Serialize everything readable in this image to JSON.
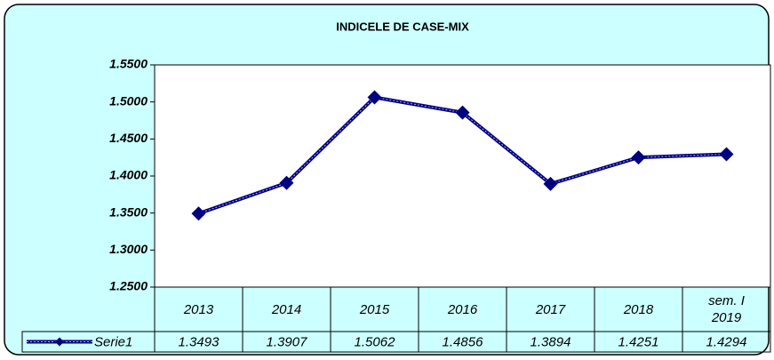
{
  "chart_data": {
    "type": "line",
    "title": "INDICELE DE CASE-MIX",
    "categories": [
      "2013",
      "2014",
      "2015",
      "2016",
      "2017",
      "2018",
      "sem. I 2019"
    ],
    "series": [
      {
        "name": "Serie1",
        "color": "#000080",
        "values": [
          1.3493,
          1.3907,
          1.5062,
          1.4856,
          1.3894,
          1.4251,
          1.4294
        ]
      }
    ],
    "ylim": [
      1.25,
      1.55
    ],
    "yticks": [
      {
        "value": 1.25,
        "label": "1.2500"
      },
      {
        "value": 1.3,
        "label": "1.3000"
      },
      {
        "value": 1.35,
        "label": "1.3500"
      },
      {
        "value": 1.4,
        "label": "1.4000"
      },
      {
        "value": 1.45,
        "label": "1.4500"
      },
      {
        "value": 1.5,
        "label": "1.5000"
      },
      {
        "value": 1.55,
        "label": "1.5500"
      }
    ],
    "grid": false,
    "data_table": true
  }
}
